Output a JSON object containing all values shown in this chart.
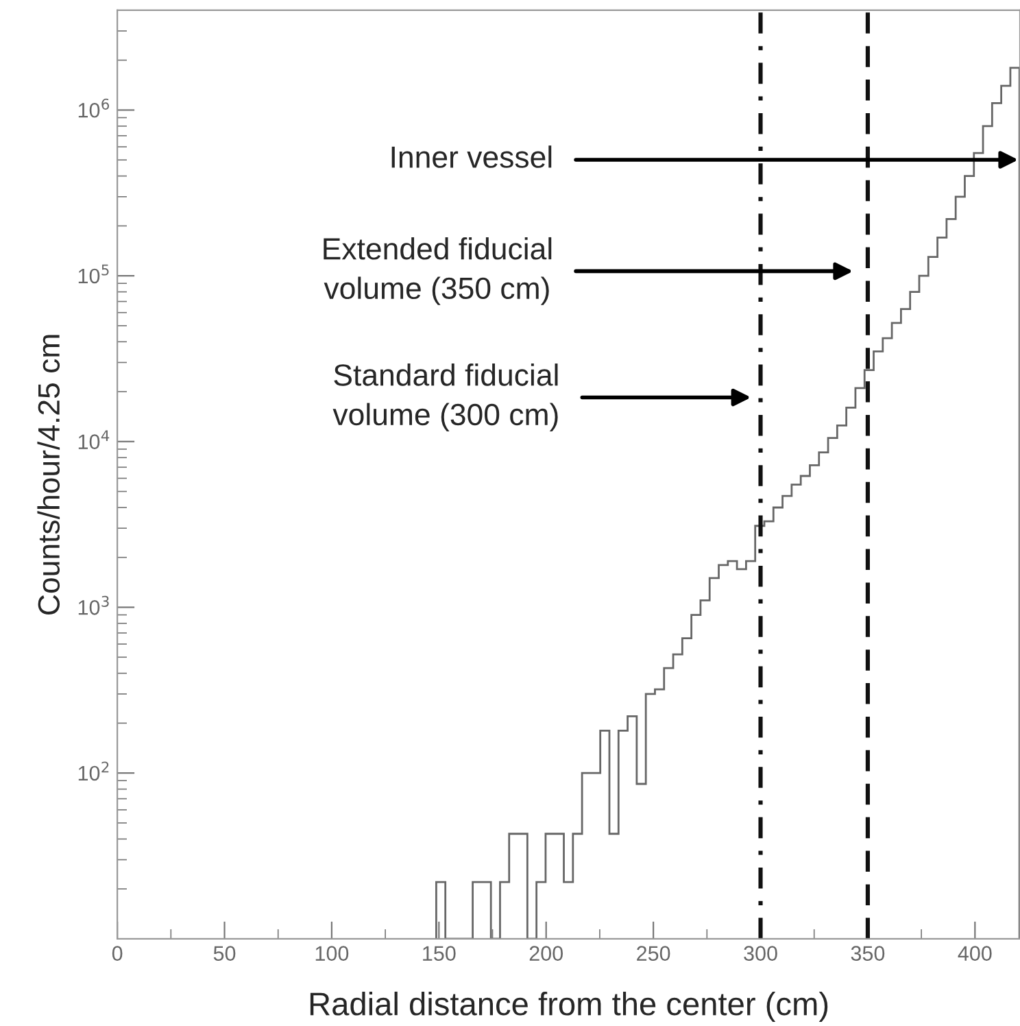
{
  "chart_data": {
    "type": "histogram",
    "xlabel": "Radial distance from the center (cm)",
    "ylabel": "Counts/hour/4.25 cm",
    "bins": [
      148.75,
      153,
      157.25,
      161.5,
      165.75,
      170,
      174.25,
      178.5,
      182.75,
      187,
      191.25,
      195.5,
      199.75,
      204,
      208.25,
      212.5,
      216.75,
      221,
      225.25,
      229.5,
      233.75,
      238,
      242.25,
      246.5,
      250.75,
      255,
      259.25,
      263.5,
      267.75,
      272,
      276.25,
      280.5,
      284.75,
      289,
      293.25,
      297.5,
      301.75,
      306,
      310.25,
      314.5,
      318.75,
      323,
      327.25,
      331.5,
      335.75,
      340,
      344.25,
      348.5,
      352.75,
      357,
      361.25,
      365.5,
      369.75,
      374,
      378.25,
      382.5,
      386.75,
      391,
      395.25,
      399.5,
      403.75,
      408,
      412.25,
      416.5,
      420.75
    ],
    "values": [
      22,
      null,
      null,
      null,
      22,
      22,
      null,
      22,
      43,
      43,
      null,
      22,
      43,
      43,
      22,
      43,
      100,
      100,
      180,
      43,
      180,
      220,
      86,
      300,
      320,
      430,
      520,
      650,
      900,
      1100,
      1500,
      1800,
      1900,
      1700,
      1900,
      3100,
      3300,
      4000,
      4700,
      5500,
      6200,
      7200,
      8600,
      10500,
      12500,
      16000,
      21000,
      27000,
      35000,
      42000,
      52000,
      63000,
      80000,
      100000,
      130000,
      170000,
      220000,
      300000,
      400000,
      550000,
      800000,
      1100000,
      1400000,
      1800000
    ],
    "color": "#666666",
    "log": "y",
    "xlim": [
      0,
      421
    ],
    "ylim": [
      10,
      4000000
    ],
    "xticks": [
      0,
      50,
      100,
      150,
      200,
      250,
      300,
      350,
      400
    ],
    "yticks": [
      {
        "value": 100,
        "label": "10$^{2}$"
      },
      {
        "value": 1000,
        "label": "10$^{3}$"
      },
      {
        "value": 10000,
        "label": "10$^{4}$"
      },
      {
        "value": 100000,
        "label": "10$^{5}$"
      },
      {
        "value": 1000000,
        "label": "10$^{6}$"
      }
    ],
    "grid": false,
    "ref_lines": [
      {
        "axis": "x",
        "value": 300,
        "color": "#111111",
        "line_style": "dashdot"
      },
      {
        "axis": "x",
        "value": 350,
        "color": "#111111",
        "line_style": "dashed"
      }
    ],
    "annotations": [
      "Inner vessel",
      "Extended fiducial\nvolume (350 cm)",
      "Standard fiducial\nvolume (300 cm)"
    ]
  }
}
